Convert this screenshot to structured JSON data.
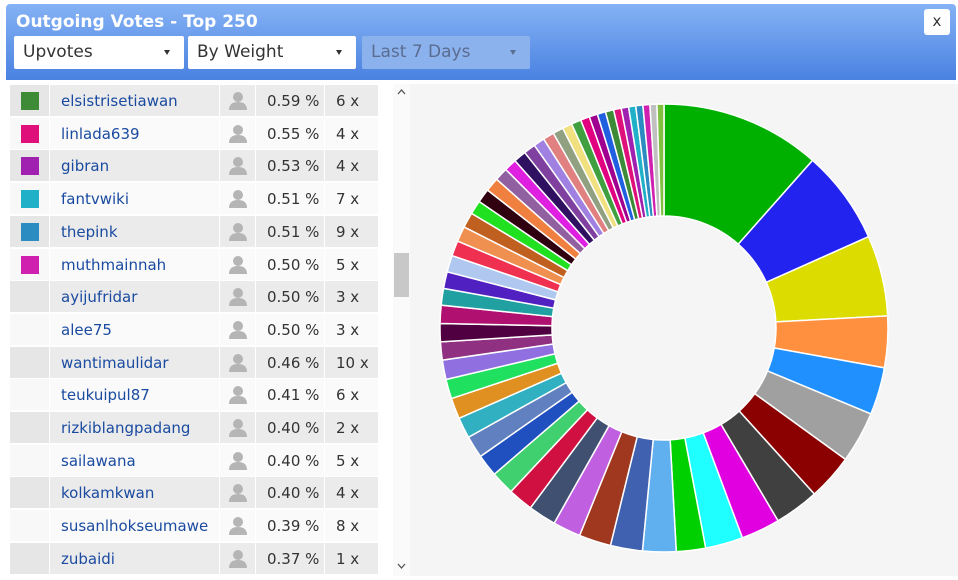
{
  "header": {
    "title": "Outgoing Votes - Top 250",
    "close": "x",
    "dropdowns": [
      "Upvotes",
      "By Weight",
      "Last 7 Days"
    ]
  },
  "table": {
    "rows": [
      {
        "color": "#3d8b37",
        "name": "elsistrisetiawan",
        "percent": "0.59 %",
        "count": "6 x"
      },
      {
        "color": "#e0107a",
        "name": "linlada639",
        "percent": "0.55 %",
        "count": "4 x"
      },
      {
        "color": "#a020b0",
        "name": "gibran",
        "percent": "0.53 %",
        "count": "4 x"
      },
      {
        "color": "#20b0c8",
        "name": "fantvwiki",
        "percent": "0.51 %",
        "count": "7 x"
      },
      {
        "color": "#2a8cc0",
        "name": "thepink",
        "percent": "0.51 %",
        "count": "9 x"
      },
      {
        "color": "#d020b0",
        "name": "muthmainnah",
        "percent": "0.50 %",
        "count": "5 x"
      },
      {
        "name": "ayijufridar",
        "percent": "0.50 %",
        "count": "3 x"
      },
      {
        "name": "alee75",
        "percent": "0.50 %",
        "count": "3 x"
      },
      {
        "name": "wantimaulidar",
        "percent": "0.46 %",
        "count": "10 x"
      },
      {
        "name": "teukuipul87",
        "percent": "0.41 %",
        "count": "6 x"
      },
      {
        "name": "rizkiblangpadang",
        "percent": "0.40 %",
        "count": "2 x"
      },
      {
        "name": "sailawana",
        "percent": "0.40 %",
        "count": "5 x"
      },
      {
        "name": "kolkamkwan",
        "percent": "0.40 %",
        "count": "4 x"
      },
      {
        "name": "susanlhokseumawe",
        "percent": "0.39 %",
        "count": "8 x"
      },
      {
        "name": "zubaidi",
        "percent": "0.37 %",
        "count": "1 x"
      }
    ]
  },
  "chart_data": {
    "type": "donut",
    "values": [
      11.5,
      6.75,
      5.8,
      3.7,
      3.4,
      3.7,
      3.3,
      3.2,
      2.8,
      2.7,
      2.1,
      2.4,
      2.3,
      2.3,
      2.0,
      2.0,
      1.8,
      1.7,
      1.6,
      1.6,
      1.5,
      1.5,
      1.4,
      1.4,
      1.3,
      1.3,
      1.3,
      1.2,
      1.2,
      1.2,
      1.1,
      1.1,
      1.1,
      1.0,
      1.0,
      1.0,
      0.95,
      0.9,
      0.9,
      0.85,
      0.8,
      0.8,
      0.75,
      0.7,
      0.7,
      0.65,
      0.6,
      0.6,
      0.59,
      0.55,
      0.53,
      0.51,
      0.51,
      0.5,
      0.5,
      0.5
    ],
    "colors": [
      "#00b000",
      "#2323f0",
      "#dcdc00",
      "#ff9040",
      "#2090ff",
      "#a0a0a0",
      "#8b0000",
      "#404040",
      "#e000e0",
      "#20ffff",
      "#00d000",
      "#60b0f0",
      "#4060b0",
      "#a03820",
      "#c060e0",
      "#405070",
      "#d01040",
      "#40d070",
      "#2050c0",
      "#6080c0",
      "#30b0c0",
      "#e09020",
      "#20e060",
      "#9070e0",
      "#903080",
      "#500040",
      "#b01070",
      "#20a0a0",
      "#5020c0",
      "#b0c8f0",
      "#f03050",
      "#f09050",
      "#c06020",
      "#20e020",
      "#300010",
      "#f08040",
      "#9060a0",
      "#e020e0",
      "#301060",
      "#8040a0",
      "#a080e0",
      "#e08080",
      "#90a080",
      "#f0e080",
      "#40a040",
      "#e00080",
      "#a00090",
      "#2060e0",
      "#3d8b37",
      "#e0107a",
      "#a020b0",
      "#20b0c8",
      "#2a8cc0",
      "#d020b0",
      "#c0c0c0",
      "#80c040"
    ]
  }
}
